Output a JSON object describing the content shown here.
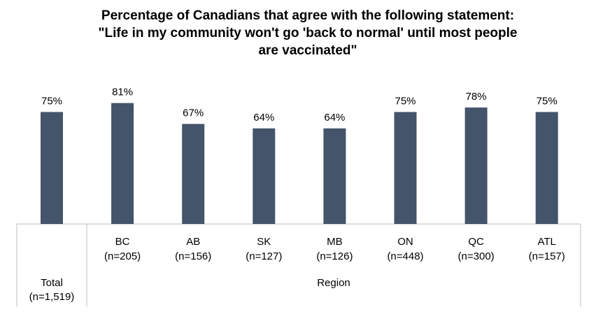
{
  "chart_data": {
    "type": "bar",
    "title_lines": [
      "Percentage of Canadians that agree with the following statement:",
      "\"Life in my community won't go 'back to normal' until most people",
      "are vaccinated\""
    ],
    "groups": [
      {
        "name": "Total",
        "categories": [
          "Total (n=1,519)"
        ]
      },
      {
        "name": "Region",
        "categories": [
          "BC (n=205)",
          "AB (n=156)",
          "SK (n=127)",
          "MB (n=126)",
          "ON (n=448)",
          "QC (n=300)",
          "ATL (n=157)"
        ]
      }
    ],
    "categories": [
      {
        "name": "Total",
        "n": "(n=1,519)"
      },
      {
        "name": "BC",
        "n": "(n=205)"
      },
      {
        "name": "AB",
        "n": "(n=156)"
      },
      {
        "name": "SK",
        "n": "(n=127)"
      },
      {
        "name": "MB",
        "n": "(n=126)"
      },
      {
        "name": "ON",
        "n": "(n=448)"
      },
      {
        "name": "QC",
        "n": "(n=300)"
      },
      {
        "name": "ATL",
        "n": "(n=157)"
      }
    ],
    "values": [
      75,
      81,
      67,
      64,
      64,
      75,
      78,
      75
    ],
    "data_labels": [
      "75%",
      "81%",
      "67%",
      "64%",
      "64%",
      "75%",
      "78%",
      "75%"
    ],
    "unit": "%",
    "ylim": [
      0,
      100
    ],
    "grid": false,
    "legend": "none",
    "bar_color": "#44546a",
    "axis_color": "#bfbfbf"
  }
}
